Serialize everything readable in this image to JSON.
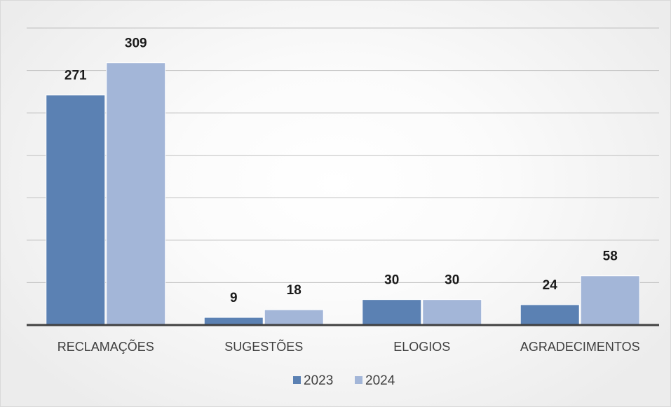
{
  "chart_data": {
    "type": "bar",
    "categories": [
      "RECLAMAÇÕES",
      "SUGESTÕES",
      "ELOGIOS",
      "AGRADECIMENTOS"
    ],
    "series": [
      {
        "name": "2023",
        "color": "#5b81b3",
        "values": [
          271,
          9,
          30,
          24
        ]
      },
      {
        "name": "2024",
        "color": "#a3b6d8",
        "values": [
          309,
          18,
          30,
          58
        ]
      }
    ],
    "ylim": [
      0,
      350
    ],
    "grid": true,
    "legend_position": "bottom"
  }
}
